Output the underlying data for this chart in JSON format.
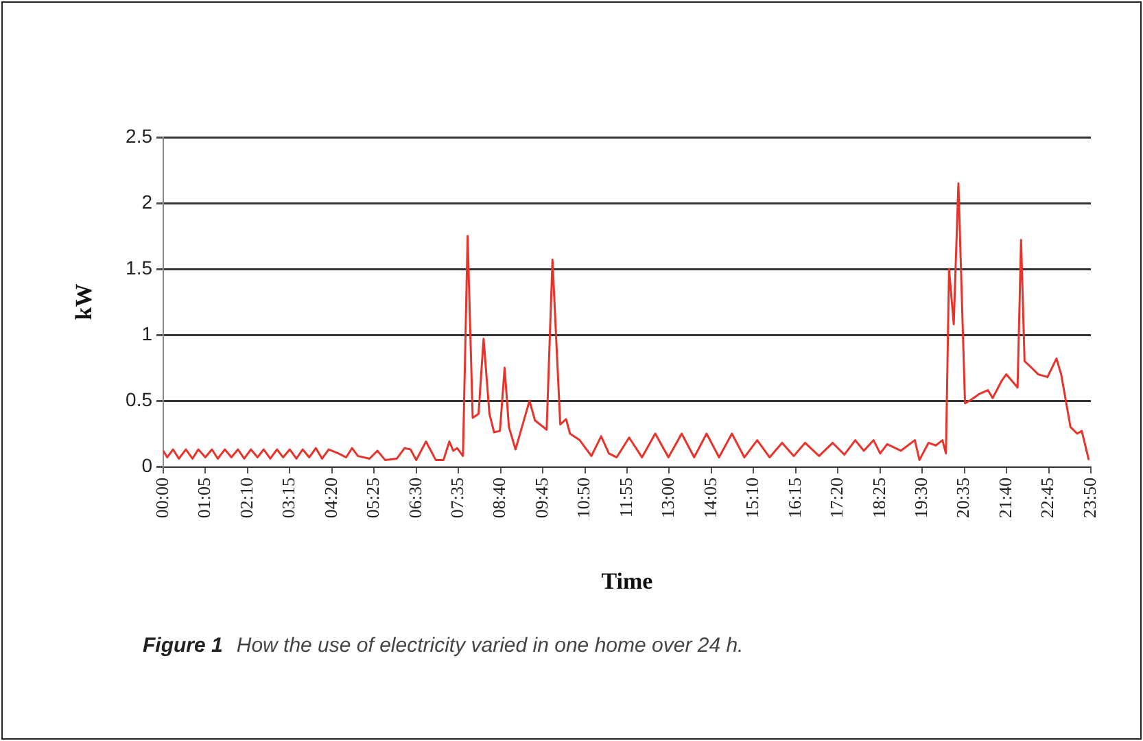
{
  "chart_data": {
    "type": "line",
    "xlabel": "Time",
    "ylabel": "kW",
    "annotations": [
      "Figure 1",
      "How the use of electricity varied in one home over 24 h."
    ],
    "series": [
      {
        "color": "#e8332b",
        "x": [
          0,
          0.1,
          0.25,
          0.4,
          0.58,
          0.75,
          0.9,
          1.08,
          1.25,
          1.4,
          1.58,
          1.75,
          1.92,
          2.08,
          2.25,
          2.42,
          2.58,
          2.75,
          2.92,
          3.08,
          3.25,
          3.42,
          3.58,
          3.75,
          3.92,
          4.08,
          4.25,
          4.5,
          4.7,
          4.85,
          5.0,
          5.3,
          5.5,
          5.7,
          6.0,
          6.2,
          6.35,
          6.5,
          6.75,
          7.0,
          7.2,
          7.35,
          7.45,
          7.55,
          7.7,
          7.82,
          7.95,
          8.1,
          8.23,
          8.38,
          8.5,
          8.65,
          8.77,
          8.88,
          9.05,
          9.41,
          9.55,
          9.85,
          10.0,
          10.2,
          10.35,
          10.45,
          10.7,
          11.0,
          11.25,
          11.45,
          11.65,
          11.97,
          12.3,
          12.64,
          12.98,
          13.32,
          13.64,
          13.96,
          14.28,
          14.61,
          14.93,
          15.26,
          15.58,
          15.9,
          16.2,
          16.49,
          16.85,
          17.2,
          17.5,
          17.78,
          18.0,
          18.25,
          18.42,
          18.6,
          18.95,
          19.31,
          19.43,
          19.66,
          19.85,
          20.02,
          20.11,
          20.19,
          20.31,
          20.43,
          20.6,
          20.72,
          20.96,
          21.19,
          21.31,
          21.54,
          21.66,
          21.95,
          22.04,
          22.13,
          22.31,
          22.48,
          22.72,
          22.95,
          23.07,
          23.31,
          23.48,
          23.6,
          23.78
        ],
        "values": [
          0.12,
          0.07,
          0.13,
          0.06,
          0.13,
          0.06,
          0.13,
          0.07,
          0.13,
          0.06,
          0.13,
          0.07,
          0.13,
          0.06,
          0.13,
          0.07,
          0.13,
          0.06,
          0.13,
          0.07,
          0.13,
          0.06,
          0.13,
          0.07,
          0.14,
          0.06,
          0.13,
          0.1,
          0.07,
          0.14,
          0.08,
          0.06,
          0.12,
          0.05,
          0.06,
          0.14,
          0.13,
          0.05,
          0.19,
          0.05,
          0.05,
          0.19,
          0.12,
          0.14,
          0.08,
          1.75,
          0.37,
          0.4,
          0.97,
          0.4,
          0.26,
          0.27,
          0.75,
          0.3,
          0.13,
          0.5,
          0.35,
          0.28,
          1.57,
          0.32,
          0.36,
          0.25,
          0.2,
          0.08,
          0.23,
          0.1,
          0.07,
          0.22,
          0.07,
          0.25,
          0.07,
          0.25,
          0.07,
          0.25,
          0.07,
          0.25,
          0.07,
          0.2,
          0.07,
          0.18,
          0.08,
          0.18,
          0.08,
          0.18,
          0.09,
          0.2,
          0.12,
          0.2,
          0.1,
          0.17,
          0.12,
          0.2,
          0.05,
          0.18,
          0.16,
          0.2,
          0.1,
          1.5,
          1.08,
          2.15,
          0.48,
          0.5,
          0.55,
          0.58,
          0.52,
          0.65,
          0.7,
          0.6,
          1.72,
          0.8,
          0.75,
          0.7,
          0.68,
          0.82,
          0.7,
          0.3,
          0.25,
          0.27,
          0.05
        ]
      }
    ],
    "xlim": [
      0,
      23.8333
    ],
    "xticks": [
      {
        "value": 0,
        "label": "00:00"
      },
      {
        "value": 1.0833,
        "label": "01:05"
      },
      {
        "value": 2.1667,
        "label": "02:10"
      },
      {
        "value": 3.25,
        "label": "03:15"
      },
      {
        "value": 4.3333,
        "label": "04:20"
      },
      {
        "value": 5.4167,
        "label": "05:25"
      },
      {
        "value": 6.5,
        "label": "06:30"
      },
      {
        "value": 7.5833,
        "label": "07:35"
      },
      {
        "value": 8.6667,
        "label": "08:40"
      },
      {
        "value": 9.75,
        "label": "09:45"
      },
      {
        "value": 10.8333,
        "label": "10:50"
      },
      {
        "value": 11.9167,
        "label": "11:55"
      },
      {
        "value": 13,
        "label": "13:00"
      },
      {
        "value": 14.0833,
        "label": "14:05"
      },
      {
        "value": 15.1667,
        "label": "15:10"
      },
      {
        "value": 16.25,
        "label": "16:15"
      },
      {
        "value": 17.3333,
        "label": "17:20"
      },
      {
        "value": 18.4167,
        "label": "18:25"
      },
      {
        "value": 19.5,
        "label": "19:30"
      },
      {
        "value": 20.5833,
        "label": "20:35"
      },
      {
        "value": 21.6667,
        "label": "21:40"
      },
      {
        "value": 22.75,
        "label": "22:45"
      },
      {
        "value": 23.8333,
        "label": "23:50"
      }
    ],
    "ylim": [
      0,
      2.5
    ],
    "yticks": [
      0,
      0.5,
      1,
      1.5,
      2,
      2.5
    ],
    "grid": "y",
    "legend": false,
    "marker": "none",
    "line_style": "solid"
  }
}
